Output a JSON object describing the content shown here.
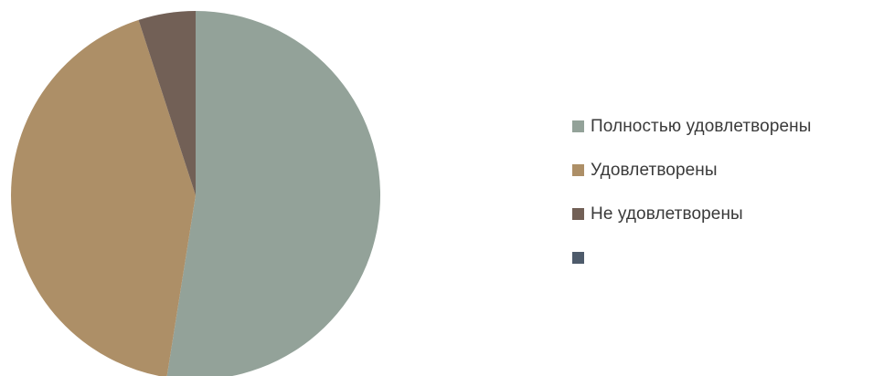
{
  "chart_data": {
    "type": "pie",
    "title": "",
    "start_angle_deg": 0,
    "direction": "clockwise",
    "legend_position": "right",
    "series": [
      {
        "name": "",
        "slices": [
          {
            "label": "Полностью удовлетворены",
            "value": 52.5,
            "color": "#93A299"
          },
          {
            "label": "Удовлетворены",
            "value": 42.5,
            "color": "#AD8F67"
          },
          {
            "label": "Не удовлетворены",
            "value": 5.0,
            "color": "#726056"
          },
          {
            "label": "",
            "value": 0,
            "color": "#4E5B6B"
          }
        ]
      }
    ]
  }
}
